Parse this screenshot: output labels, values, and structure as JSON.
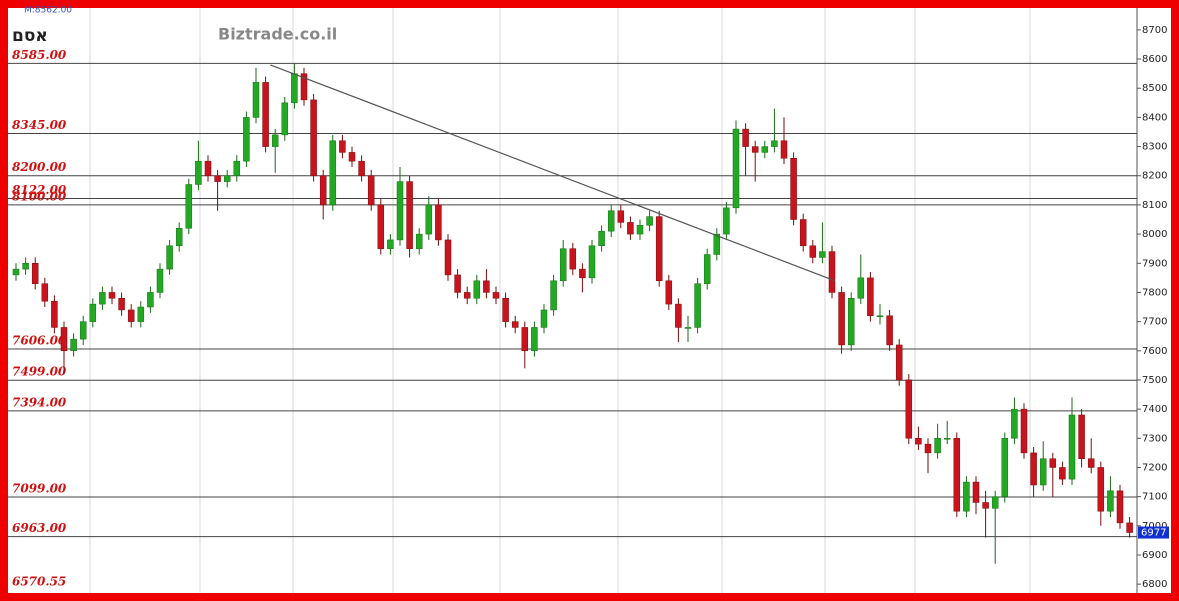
{
  "chart_data": {
    "type": "candlestick",
    "header_note": "M:8562.00",
    "title": "אסם",
    "brand": "Biztrade.co.il",
    "up_color": "#22a822",
    "down_color": "#c8141e",
    "ylim": [
      6780,
      8775
    ],
    "yticks": [
      6800,
      6900,
      7000,
      7100,
      7200,
      7300,
      7400,
      7500,
      7600,
      7700,
      7800,
      7900,
      8000,
      8100,
      8200,
      8300,
      8400,
      8500,
      8600,
      8700
    ],
    "levels": {
      "values": [
        8585,
        8345,
        8200,
        8122,
        8100,
        7606,
        7499,
        7394,
        7099,
        6963
      ],
      "value_labels": [
        "8585.00",
        "8345.00",
        "8200.00",
        "8122.00",
        "8100.00",
        "7606.00",
        "7499.00",
        "7394.00",
        "7099.00",
        "6963.00"
      ]
    },
    "low_label": "6570.55",
    "last_price": 6977,
    "trendline": {
      "x": [
        26.5,
        85.3
      ],
      "y": [
        8580,
        7840
      ]
    },
    "ohlc": [
      [
        7860,
        7900,
        7840,
        7880
      ],
      [
        7880,
        7920,
        7860,
        7900
      ],
      [
        7900,
        7920,
        7810,
        7830
      ],
      [
        7830,
        7850,
        7750,
        7770
      ],
      [
        7770,
        7790,
        7660,
        7680
      ],
      [
        7680,
        7700,
        7520,
        7600
      ],
      [
        7600,
        7660,
        7580,
        7640
      ],
      [
        7640,
        7720,
        7620,
        7700
      ],
      [
        7700,
        7780,
        7680,
        7760
      ],
      [
        7760,
        7820,
        7740,
        7800
      ],
      [
        7800,
        7820,
        7760,
        7780
      ],
      [
        7780,
        7800,
        7720,
        7740
      ],
      [
        7740,
        7760,
        7680,
        7700
      ],
      [
        7700,
        7770,
        7680,
        7750
      ],
      [
        7750,
        7820,
        7730,
        7800
      ],
      [
        7800,
        7900,
        7780,
        7880
      ],
      [
        7880,
        7980,
        7860,
        7960
      ],
      [
        7960,
        8040,
        7940,
        8020
      ],
      [
        8020,
        8190,
        8000,
        8170
      ],
      [
        8170,
        8320,
        8150,
        8250
      ],
      [
        8250,
        8270,
        8180,
        8200
      ],
      [
        8200,
        8220,
        8080,
        8180
      ],
      [
        8180,
        8220,
        8160,
        8200
      ],
      [
        8200,
        8270,
        8180,
        8250
      ],
      [
        8250,
        8420,
        8230,
        8400
      ],
      [
        8400,
        8570,
        8380,
        8520
      ],
      [
        8520,
        8540,
        8280,
        8300
      ],
      [
        8300,
        8360,
        8210,
        8340
      ],
      [
        8340,
        8470,
        8320,
        8450
      ],
      [
        8450,
        8585,
        8430,
        8550
      ],
      [
        8550,
        8570,
        8440,
        8460
      ],
      [
        8460,
        8480,
        8180,
        8200
      ],
      [
        8200,
        8220,
        8050,
        8100
      ],
      [
        8100,
        8340,
        8080,
        8320
      ],
      [
        8320,
        8340,
        8260,
        8280
      ],
      [
        8280,
        8300,
        8230,
        8250
      ],
      [
        8250,
        8270,
        8180,
        8200
      ],
      [
        8200,
        8220,
        8080,
        8100
      ],
      [
        8100,
        8120,
        7930,
        7950
      ],
      [
        7950,
        8000,
        7930,
        7980
      ],
      [
        7980,
        8230,
        7960,
        8180
      ],
      [
        8180,
        8200,
        7920,
        7950
      ],
      [
        7950,
        8020,
        7930,
        8000
      ],
      [
        8000,
        8130,
        7980,
        8100
      ],
      [
        8100,
        8120,
        7960,
        7980
      ],
      [
        7980,
        8000,
        7840,
        7860
      ],
      [
        7860,
        7880,
        7780,
        7800
      ],
      [
        7800,
        7820,
        7760,
        7780
      ],
      [
        7780,
        7860,
        7760,
        7840
      ],
      [
        7840,
        7880,
        7780,
        7800
      ],
      [
        7800,
        7820,
        7760,
        7780
      ],
      [
        7780,
        7800,
        7680,
        7700
      ],
      [
        7700,
        7720,
        7660,
        7680
      ],
      [
        7680,
        7700,
        7540,
        7600
      ],
      [
        7600,
        7700,
        7580,
        7680
      ],
      [
        7680,
        7760,
        7660,
        7740
      ],
      [
        7740,
        7860,
        7720,
        7840
      ],
      [
        7840,
        7980,
        7820,
        7950
      ],
      [
        7950,
        7970,
        7860,
        7880
      ],
      [
        7880,
        7900,
        7800,
        7850
      ],
      [
        7850,
        7980,
        7830,
        7960
      ],
      [
        7960,
        8030,
        7940,
        8010
      ],
      [
        8010,
        8100,
        7990,
        8080
      ],
      [
        8080,
        8100,
        8020,
        8040
      ],
      [
        8040,
        8060,
        7980,
        8000
      ],
      [
        8000,
        8050,
        7980,
        8030
      ],
      [
        8030,
        8080,
        8010,
        8060
      ],
      [
        8060,
        8080,
        7820,
        7840
      ],
      [
        7840,
        7860,
        7740,
        7760
      ],
      [
        7760,
        7780,
        7630,
        7680
      ],
      [
        7680,
        7720,
        7630,
        7680
      ],
      [
        7680,
        7850,
        7660,
        7830
      ],
      [
        7830,
        7950,
        7810,
        7930
      ],
      [
        7930,
        8020,
        7910,
        8000
      ],
      [
        8000,
        8110,
        7980,
        8090
      ],
      [
        8090,
        8390,
        8070,
        8360
      ],
      [
        8360,
        8380,
        8200,
        8300
      ],
      [
        8300,
        8320,
        8180,
        8280
      ],
      [
        8280,
        8320,
        8260,
        8300
      ],
      [
        8300,
        8430,
        8280,
        8320
      ],
      [
        8320,
        8400,
        8240,
        8260
      ],
      [
        8260,
        8280,
        8030,
        8050
      ],
      [
        8050,
        8070,
        7940,
        7960
      ],
      [
        7960,
        7980,
        7900,
        7920
      ],
      [
        7920,
        8040,
        7900,
        7940
      ],
      [
        7940,
        7960,
        7780,
        7800
      ],
      [
        7800,
        7820,
        7590,
        7620
      ],
      [
        7620,
        7800,
        7600,
        7780
      ],
      [
        7780,
        7930,
        7760,
        7850
      ],
      [
        7850,
        7870,
        7700,
        7720
      ],
      [
        7720,
        7760,
        7690,
        7720
      ],
      [
        7720,
        7740,
        7600,
        7620
      ],
      [
        7620,
        7640,
        7480,
        7500
      ],
      [
        7500,
        7520,
        7280,
        7300
      ],
      [
        7300,
        7340,
        7260,
        7280
      ],
      [
        7280,
        7300,
        7180,
        7250
      ],
      [
        7250,
        7350,
        7230,
        7300
      ],
      [
        7300,
        7360,
        7280,
        7300
      ],
      [
        7300,
        7320,
        7030,
        7050
      ],
      [
        7050,
        7170,
        7030,
        7150
      ],
      [
        7150,
        7170,
        7040,
        7080
      ],
      [
        7080,
        7120,
        6960,
        7060
      ],
      [
        7060,
        7120,
        6870,
        7100
      ],
      [
        7100,
        7320,
        7080,
        7300
      ],
      [
        7300,
        7440,
        7280,
        7400
      ],
      [
        7400,
        7420,
        7230,
        7250
      ],
      [
        7250,
        7270,
        7100,
        7140
      ],
      [
        7140,
        7290,
        7120,
        7230
      ],
      [
        7230,
        7250,
        7100,
        7200
      ],
      [
        7200,
        7220,
        7140,
        7160
      ],
      [
        7160,
        7440,
        7140,
        7380
      ],
      [
        7380,
        7400,
        7200,
        7230
      ],
      [
        7230,
        7300,
        7180,
        7200
      ],
      [
        7200,
        7220,
        7000,
        7050
      ],
      [
        7050,
        7170,
        7030,
        7120
      ],
      [
        7120,
        7140,
        6990,
        7010
      ],
      [
        7010,
        7030,
        6960,
        6977
      ]
    ]
  }
}
